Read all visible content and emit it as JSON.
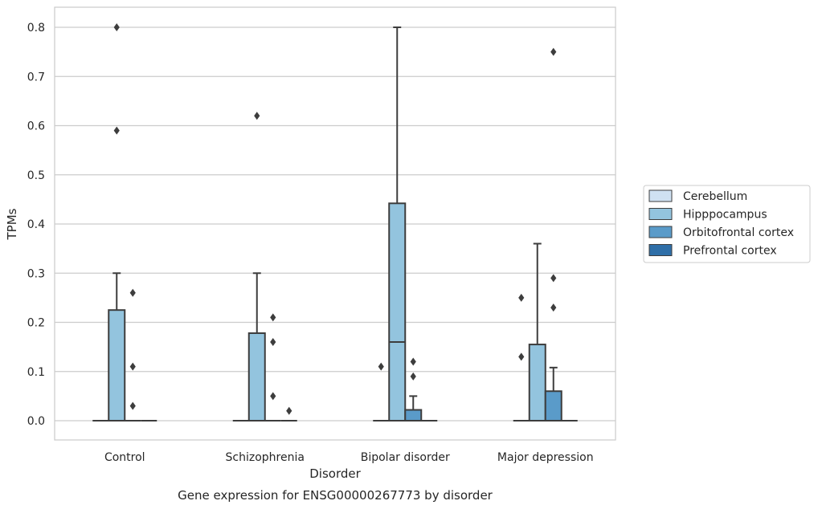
{
  "chart_data": {
    "type": "boxplot",
    "title": "Gene expression for ENSG00000267773 by disorder",
    "xlabel": "Disorder",
    "ylabel": "TPMs",
    "categories": [
      "Control",
      "Schizophrenia",
      "Bipolar disorder",
      "Major depression"
    ],
    "ylim": [
      -0.04,
      0.84
    ],
    "yticks": [
      0.0,
      0.1,
      0.2,
      0.3,
      0.4,
      0.5,
      0.6,
      0.7,
      0.8
    ],
    "ytick_labels": [
      "0.0",
      "0.1",
      "0.2",
      "0.3",
      "0.4",
      "0.5",
      "0.6",
      "0.7",
      "0.8"
    ],
    "grid": true,
    "legend_position": "right",
    "series": [
      {
        "name": "Cerebellum",
        "color": "#cfe1f2",
        "boxes": [
          {
            "q1": 0,
            "median": 0,
            "q3": 0,
            "whislo": 0,
            "whishi": 0,
            "fliers": []
          },
          {
            "q1": 0,
            "median": 0,
            "q3": 0,
            "whislo": 0,
            "whishi": 0,
            "fliers": []
          },
          {
            "q1": 0,
            "median": 0,
            "q3": 0,
            "whislo": 0,
            "whishi": 0,
            "fliers": [
              0.11
            ]
          },
          {
            "q1": 0,
            "median": 0,
            "q3": 0,
            "whislo": 0,
            "whishi": 0,
            "fliers": [
              0.25,
              0.13
            ]
          }
        ]
      },
      {
        "name": "Hipppocampus",
        "color": "#93c4de",
        "boxes": [
          {
            "q1": 0,
            "median": 0,
            "q3": 0.225,
            "whislo": 0,
            "whishi": 0.3,
            "fliers": [
              0.8,
              0.59
            ]
          },
          {
            "q1": 0,
            "median": 0,
            "q3": 0.178,
            "whislo": 0,
            "whishi": 0.3,
            "fliers": [
              0.62
            ]
          },
          {
            "q1": 0,
            "median": 0.16,
            "q3": 0.442,
            "whislo": 0,
            "whishi": 0.8,
            "fliers": []
          },
          {
            "q1": 0,
            "median": 0,
            "q3": 0.155,
            "whislo": 0,
            "whishi": 0.36,
            "fliers": []
          }
        ]
      },
      {
        "name": "Orbitofrontal cortex",
        "color": "#5a9bc9",
        "boxes": [
          {
            "q1": 0,
            "median": 0,
            "q3": 0,
            "whislo": 0,
            "whishi": 0,
            "fliers": [
              0.03,
              0.26,
              0.11
            ]
          },
          {
            "q1": 0,
            "median": 0,
            "q3": 0,
            "whislo": 0,
            "whishi": 0,
            "fliers": [
              0.21,
              0.16,
              0.05
            ]
          },
          {
            "q1": 0,
            "median": 0,
            "q3": 0.022,
            "whislo": 0,
            "whishi": 0.05,
            "fliers": [
              0.12,
              0.09
            ]
          },
          {
            "q1": 0,
            "median": 0,
            "q3": 0.06,
            "whislo": 0,
            "whishi": 0.108,
            "fliers": [
              0.75,
              0.29,
              0.23
            ]
          }
        ]
      },
      {
        "name": "Prefrontal cortex",
        "color": "#2f6fa8",
        "boxes": [
          {
            "q1": 0,
            "median": 0,
            "q3": 0,
            "whislo": 0,
            "whishi": 0,
            "fliers": []
          },
          {
            "q1": 0,
            "median": 0,
            "q3": 0,
            "whislo": 0,
            "whishi": 0,
            "fliers": [
              0.02
            ]
          },
          {
            "q1": 0,
            "median": 0,
            "q3": 0,
            "whislo": 0,
            "whishi": 0,
            "fliers": []
          },
          {
            "q1": 0,
            "median": 0,
            "q3": 0,
            "whislo": 0,
            "whishi": 0,
            "fliers": []
          }
        ]
      }
    ]
  }
}
